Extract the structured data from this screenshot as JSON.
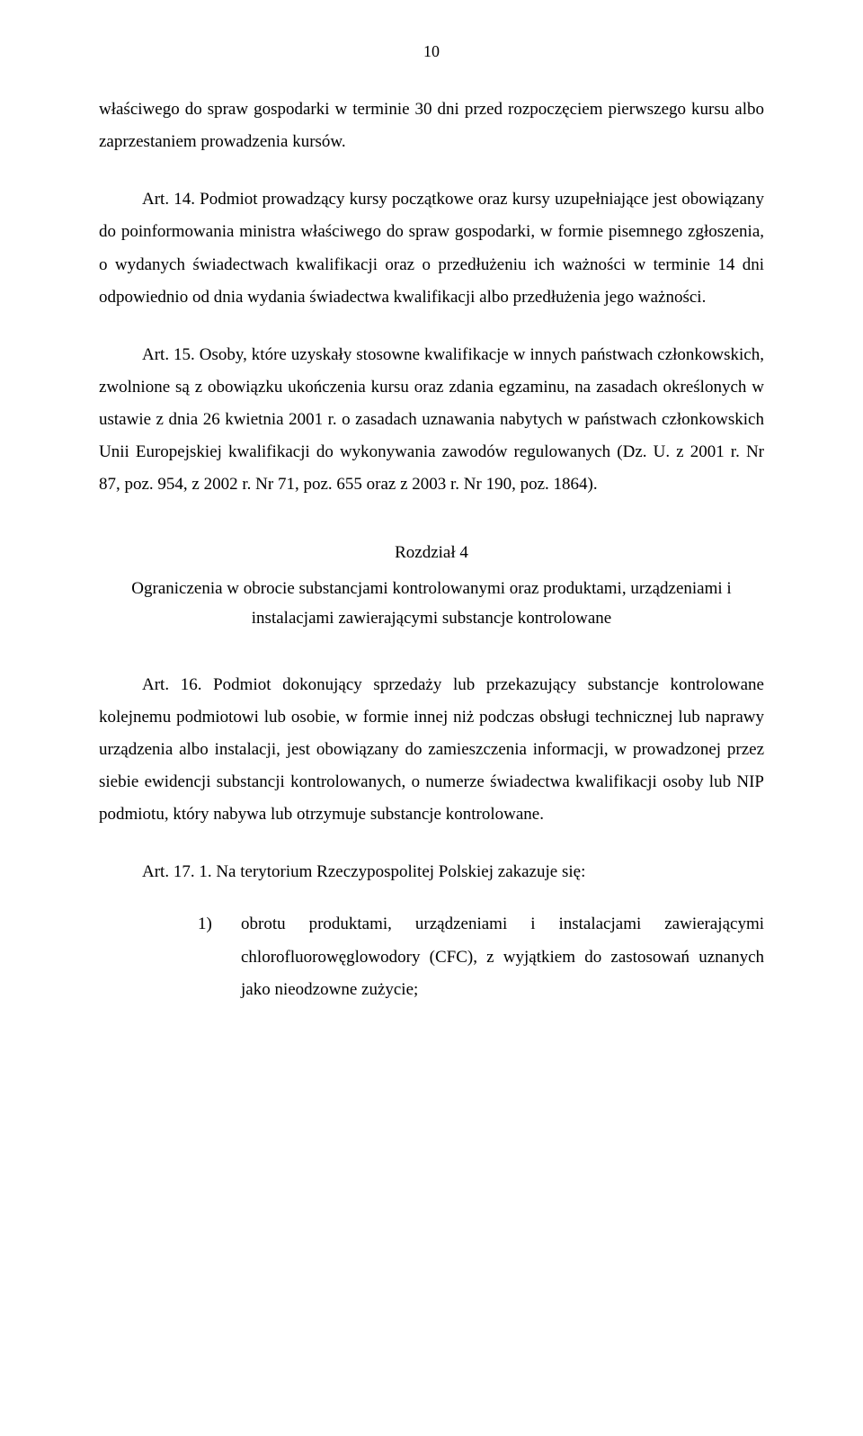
{
  "page_number": "10",
  "p_cont": "właściwego do spraw gospodarki w terminie 30 dni przed rozpoczęciem pierwszego kursu albo zaprzestaniem prowadzenia kursów.",
  "p_art14": "Art. 14. Podmiot prowadzący kursy początkowe oraz kursy uzupełniające jest obowiązany do poinformowania ministra właściwego do spraw gospodarki, w formie pisemnego zgłoszenia, o wydanych świadectwach kwalifikacji oraz o przedłużeniu ich ważności w terminie 14 dni odpowiednio od dnia wydania świadectwa kwalifikacji albo przedłużenia jego ważności.",
  "p_art15": "Art. 15. Osoby, które uzyskały stosowne kwalifikacje w innych państwach członkowskich, zwolnione są z obowiązku ukończenia kursu oraz zdania egzaminu, na zasadach określonych w ustawie z dnia 26 kwietnia 2001 r. o zasadach uznawania nabytych w państwach członkowskich Unii Europejskiej kwalifikacji do wykonywania zawodów regulowanych (Dz. U. z 2001 r. Nr 87, poz. 954, z 2002 r. Nr 71, poz. 655 oraz z 2003 r. Nr 190, poz. 1864).",
  "chapter_label": "Rozdział 4",
  "chapter_title": "Ograniczenia w obrocie substancjami kontrolowanymi oraz produktami, urządzeniami i instalacjami zawierającymi substancje kontrolowane",
  "p_art16": "Art. 16. Podmiot dokonujący sprzedaży lub przekazujący substancje kontrolowane kolejnemu podmiotowi lub osobie, w formie innej niż podczas obsługi technicznej lub naprawy urządzenia albo instalacji, jest obowiązany do zamieszczenia informacji, w prowadzonej przez siebie ewidencji substancji kontrolowanych, o numerze świadectwa kwalifikacji osoby lub NIP podmiotu, który nabywa lub otrzymuje substancje kontrolowane.",
  "p_art17_intro": "Art. 17. 1. Na terytorium Rzeczypospolitej Polskiej zakazuje się:",
  "list": {
    "items": [
      {
        "num": "1)",
        "text": "obrotu produktami, urządzeniami i instalacjami zawierającymi chlorofluorowęglowodory (CFC), z wyjątkiem do zastosowań uznanych jako nieodzowne zużycie;"
      }
    ]
  }
}
